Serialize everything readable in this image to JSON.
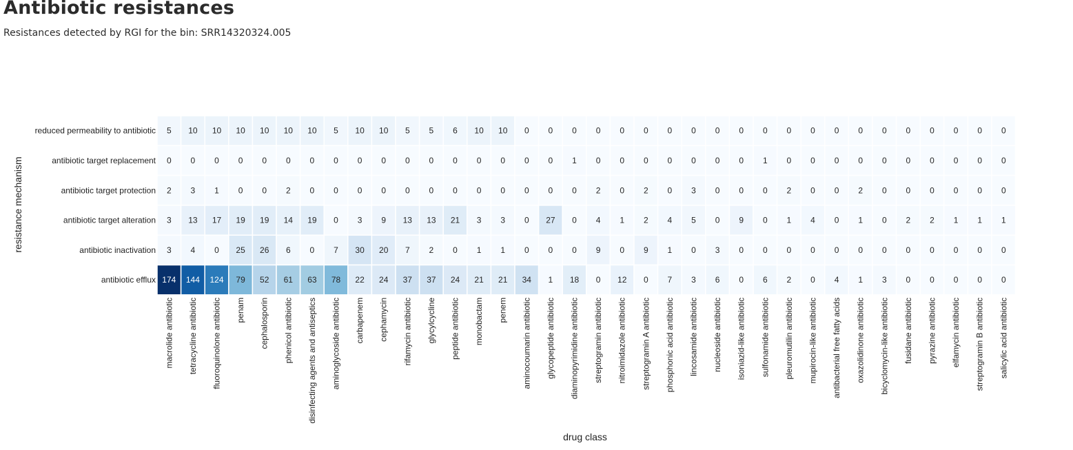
{
  "page": {
    "title": "Antibiotic resistances",
    "subtitle": "Resistances detected by RGI for the bin: SRR14320324.005"
  },
  "chart_data": {
    "type": "heatmap",
    "xlabel": "drug class",
    "ylabel": "resistance mechanism",
    "colormap": "Blues",
    "vmin": 0,
    "vmax": 174,
    "x": [
      "macrolide antibiotic",
      "tetracycline antibiotic",
      "fluoroquinolone antibiotic",
      "penam",
      "cephalosporin",
      "phenicol antibiotic",
      "disinfecting agents and antiseptics",
      "aminoglycoside antibiotic",
      "carbapenem",
      "cephamycin",
      "rifamycin antibiotic",
      "glycylcycline",
      "peptide antibiotic",
      "monobactam",
      "penem",
      "aminocoumarin antibiotic",
      "glycopeptide antibiotic",
      "diaminopyrimidine antibiotic",
      "streptogramin antibiotic",
      "nitroimidazole antibiotic",
      "streptogramin A antibiotic",
      "phosphonic acid antibiotic",
      "lincosamide antibiotic",
      "nucleoside antibiotic",
      "isoniazid-like antibiotic",
      "sulfonamide antibiotic",
      "pleuromutilin antibiotic",
      "mupirocin-like antibiotic",
      "antibacterial free fatty acids",
      "oxazolidinone antibiotic",
      "bicyclomycin-like antibiotic",
      "fusidane antibiotic",
      "pyrazine antibiotic",
      "elfamycin antibiotic",
      "streptogramin B antibiotic",
      "salicylic acid antibiotic"
    ],
    "y": [
      "reduced permeability to antibiotic",
      "antibiotic target replacement",
      "antibiotic target protection",
      "antibiotic target alteration",
      "antibiotic inactivation",
      "antibiotic efflux"
    ],
    "values": [
      [
        5,
        10,
        10,
        10,
        10,
        10,
        10,
        5,
        10,
        10,
        5,
        5,
        6,
        10,
        10,
        0,
        0,
        0,
        0,
        0,
        0,
        0,
        0,
        0,
        0,
        0,
        0,
        0,
        0,
        0,
        0,
        0,
        0,
        0,
        0,
        0
      ],
      [
        0,
        0,
        0,
        0,
        0,
        0,
        0,
        0,
        0,
        0,
        0,
        0,
        0,
        0,
        0,
        0,
        0,
        1,
        0,
        0,
        0,
        0,
        0,
        0,
        0,
        1,
        0,
        0,
        0,
        0,
        0,
        0,
        0,
        0,
        0,
        0
      ],
      [
        2,
        3,
        1,
        0,
        0,
        2,
        0,
        0,
        0,
        0,
        0,
        0,
        0,
        0,
        0,
        0,
        0,
        0,
        2,
        0,
        2,
        0,
        3,
        0,
        0,
        0,
        2,
        0,
        0,
        2,
        0,
        0,
        0,
        0,
        0,
        0
      ],
      [
        3,
        13,
        17,
        19,
        19,
        14,
        19,
        0,
        3,
        9,
        13,
        13,
        21,
        3,
        3,
        0,
        27,
        0,
        4,
        1,
        2,
        4,
        5,
        0,
        9,
        0,
        1,
        4,
        0,
        1,
        0,
        2,
        2,
        1,
        1,
        1
      ],
      [
        3,
        4,
        0,
        25,
        26,
        6,
        0,
        7,
        30,
        20,
        7,
        2,
        0,
        1,
        1,
        0,
        0,
        0,
        9,
        0,
        9,
        1,
        0,
        3,
        0,
        0,
        0,
        0,
        0,
        0,
        0,
        0,
        0,
        0,
        0,
        0
      ],
      [
        174,
        144,
        124,
        79,
        52,
        61,
        63,
        78,
        22,
        24,
        37,
        37,
        24,
        21,
        21,
        34,
        1,
        18,
        0,
        12,
        0,
        7,
        3,
        6,
        0,
        6,
        2,
        0,
        4,
        1,
        3,
        0,
        0,
        0,
        0,
        0
      ]
    ]
  }
}
